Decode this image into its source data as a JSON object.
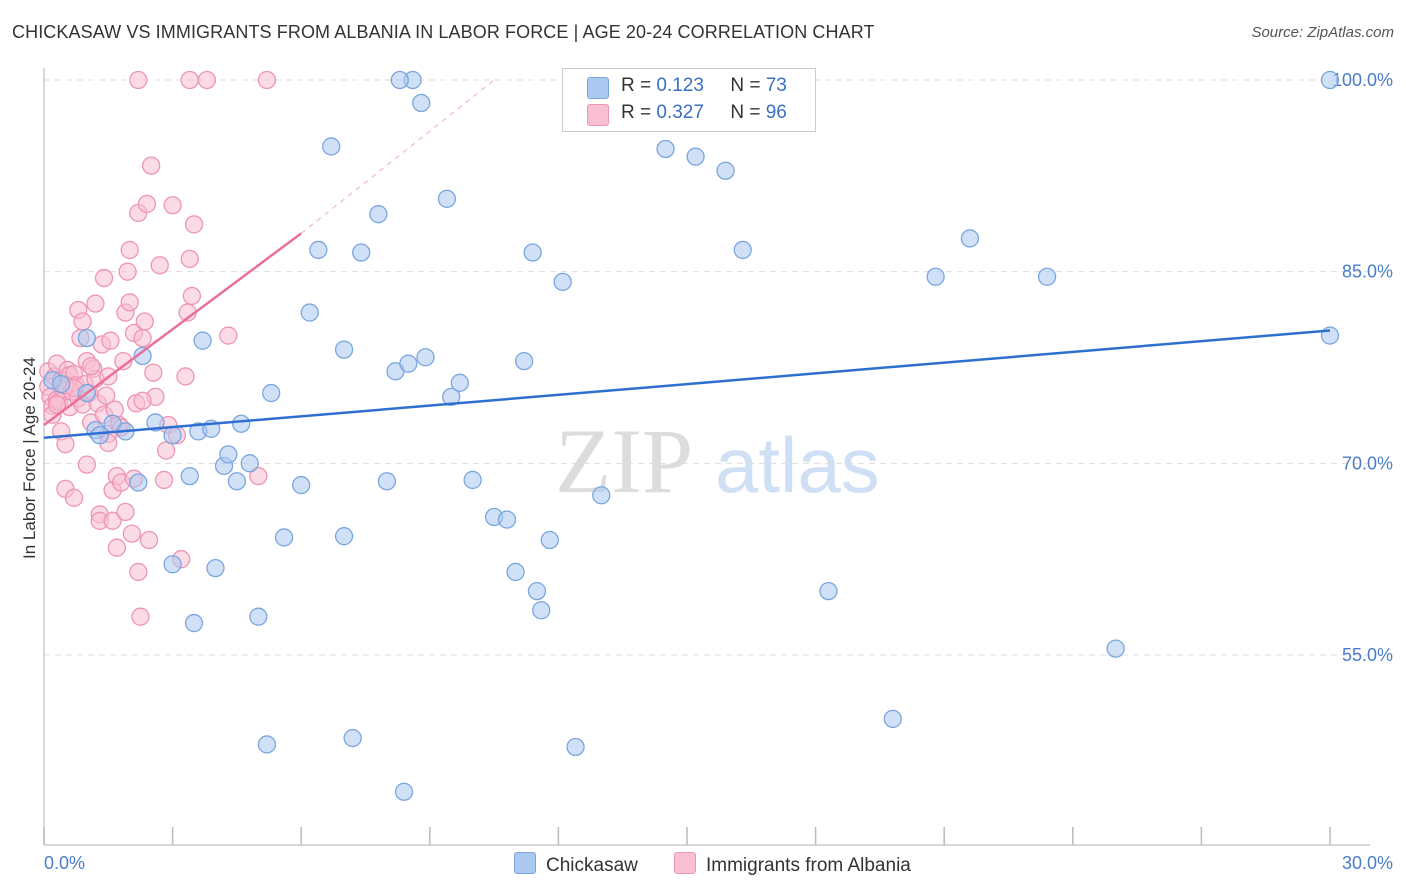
{
  "title": "CHICKASAW VS IMMIGRANTS FROM ALBANIA IN LABOR FORCE | AGE 20-24 CORRELATION CHART",
  "source": "Source: ZipAtlas.com",
  "watermark": {
    "zip": "ZIP",
    "atlas": "atlas"
  },
  "colors": {
    "chickasaw_fill": "#aac8f0",
    "chickasaw_stroke": "#7aa6e0",
    "chickasaw_line": "#2f6fd0",
    "albania_fill": "#f8c0d2",
    "albania_stroke": "#ee94b4",
    "albania_line": "#e8709a",
    "tick_text": "#4a7cc9",
    "grid": "#dddddd"
  },
  "legend": {
    "rows": [
      {
        "r_label": "R =",
        "r_value": "0.123",
        "n_label": "N =",
        "n_value": "73"
      },
      {
        "r_label": "R =",
        "r_value": "0.327",
        "n_label": "N =",
        "n_value": "96"
      }
    ]
  },
  "chart_data": {
    "type": "scatter",
    "title": "CHICKASAW VS IMMIGRANTS FROM ALBANIA IN LABOR FORCE | AGE 20-24 CORRELATION CHART",
    "xlabel": "",
    "ylabel": "In Labor Force | Age 20-24",
    "xlim": [
      0,
      30
    ],
    "ylim": [
      40,
      102.5
    ],
    "x_tick_labels": [
      "0.0%",
      "30.0%"
    ],
    "y_ticks": [
      55,
      70,
      85,
      100
    ],
    "y_tick_labels": [
      "55.0%",
      "70.0%",
      "85.0%",
      "100.0%"
    ],
    "legend_position": "bottom-center",
    "series": [
      {
        "name": "Chickasaw",
        "r": 0.123,
        "n": 73,
        "trend": {
          "x": [
            0,
            30
          ],
          "y": [
            72.0,
            80.4
          ]
        },
        "points": [
          [
            0.2,
            76.5
          ],
          [
            0.4,
            76.2
          ],
          [
            1.0,
            75.5
          ],
          [
            1.0,
            79.8
          ],
          [
            1.2,
            72.6
          ],
          [
            1.3,
            72.2
          ],
          [
            1.6,
            73.1
          ],
          [
            1.9,
            72.5
          ],
          [
            2.2,
            68.5
          ],
          [
            2.3,
            78.4
          ],
          [
            2.6,
            73.2
          ],
          [
            3.0,
            62.1
          ],
          [
            3.0,
            72.2
          ],
          [
            3.4,
            69.0
          ],
          [
            3.5,
            57.5
          ],
          [
            3.6,
            72.5
          ],
          [
            3.7,
            79.6
          ],
          [
            3.9,
            72.7
          ],
          [
            4.0,
            61.8
          ],
          [
            4.2,
            69.8
          ],
          [
            4.3,
            70.7
          ],
          [
            4.5,
            68.6
          ],
          [
            4.6,
            73.1
          ],
          [
            4.8,
            70.0
          ],
          [
            5.0,
            58.0
          ],
          [
            5.2,
            48.0
          ],
          [
            5.3,
            75.5
          ],
          [
            5.6,
            64.2
          ],
          [
            6.0,
            68.3
          ],
          [
            6.2,
            81.8
          ],
          [
            6.4,
            86.7
          ],
          [
            6.7,
            94.8
          ],
          [
            7.0,
            78.9
          ],
          [
            7.0,
            64.3
          ],
          [
            7.2,
            48.5
          ],
          [
            7.4,
            86.5
          ],
          [
            7.8,
            89.5
          ],
          [
            8.0,
            68.6
          ],
          [
            8.2,
            77.2
          ],
          [
            8.4,
            44.3
          ],
          [
            8.5,
            77.8
          ],
          [
            8.6,
            100.0
          ],
          [
            8.8,
            98.2
          ],
          [
            8.9,
            78.3
          ],
          [
            9.4,
            90.7
          ],
          [
            9.5,
            75.2
          ],
          [
            9.7,
            76.3
          ],
          [
            10.0,
            68.7
          ],
          [
            10.5,
            65.8
          ],
          [
            10.8,
            65.6
          ],
          [
            11.0,
            61.5
          ],
          [
            11.2,
            78.0
          ],
          [
            11.4,
            86.5
          ],
          [
            11.5,
            60.0
          ],
          [
            11.6,
            58.5
          ],
          [
            11.8,
            64.0
          ],
          [
            12.1,
            84.2
          ],
          [
            12.4,
            47.8
          ],
          [
            13.0,
            67.5
          ],
          [
            14.5,
            94.6
          ],
          [
            15.2,
            94.0
          ],
          [
            15.9,
            92.9
          ],
          [
            16.3,
            86.7
          ],
          [
            18.3,
            60.0
          ],
          [
            19.8,
            50.0
          ],
          [
            20.8,
            84.6
          ],
          [
            21.6,
            87.6
          ],
          [
            23.4,
            84.6
          ],
          [
            25.0,
            55.5
          ],
          [
            30.0,
            80.0
          ],
          [
            30.0,
            100.0
          ],
          [
            8.3,
            100.0
          ],
          [
            12.7,
            100.0
          ]
        ]
      },
      {
        "name": "Immigrants from Albania",
        "r": 0.327,
        "n": 96,
        "trend": {
          "x": [
            0,
            6.0
          ],
          "y": [
            73.0,
            88.0
          ]
        },
        "trend_dashed": {
          "x": [
            6.0,
            10.5
          ],
          "y": [
            88.0,
            100.0
          ]
        },
        "points": [
          [
            0.1,
            77.2
          ],
          [
            0.1,
            76.0
          ],
          [
            0.15,
            75.2
          ],
          [
            0.2,
            74.5
          ],
          [
            0.2,
            73.8
          ],
          [
            0.25,
            76.8
          ],
          [
            0.3,
            75.0
          ],
          [
            0.3,
            77.8
          ],
          [
            0.35,
            74.8
          ],
          [
            0.4,
            76.5
          ],
          [
            0.4,
            72.5
          ],
          [
            0.45,
            75.8
          ],
          [
            0.5,
            71.5
          ],
          [
            0.5,
            68.0
          ],
          [
            0.55,
            77.3
          ],
          [
            0.6,
            76.9
          ],
          [
            0.6,
            74.4
          ],
          [
            0.65,
            75.6
          ],
          [
            0.7,
            77.0
          ],
          [
            0.7,
            67.3
          ],
          [
            0.75,
            76.1
          ],
          [
            0.8,
            82.0
          ],
          [
            0.8,
            75.1
          ],
          [
            0.85,
            79.8
          ],
          [
            0.9,
            81.1
          ],
          [
            0.9,
            74.6
          ],
          [
            0.95,
            76.2
          ],
          [
            1.0,
            78.0
          ],
          [
            1.0,
            69.9
          ],
          [
            1.05,
            75.5
          ],
          [
            1.1,
            73.2
          ],
          [
            1.15,
            77.4
          ],
          [
            1.2,
            82.5
          ],
          [
            1.2,
            76.6
          ],
          [
            1.25,
            74.7
          ],
          [
            1.3,
            66.0
          ],
          [
            1.3,
            65.5
          ],
          [
            1.35,
            79.3
          ],
          [
            1.4,
            84.5
          ],
          [
            1.4,
            73.8
          ],
          [
            1.45,
            75.3
          ],
          [
            1.5,
            76.8
          ],
          [
            1.5,
            72.3
          ],
          [
            1.55,
            79.6
          ],
          [
            1.6,
            65.5
          ],
          [
            1.6,
            67.9
          ],
          [
            1.65,
            74.2
          ],
          [
            1.7,
            69.0
          ],
          [
            1.7,
            63.4
          ],
          [
            1.75,
            73.0
          ],
          [
            1.8,
            72.8
          ],
          [
            1.8,
            68.5
          ],
          [
            1.85,
            78.0
          ],
          [
            1.9,
            66.2
          ],
          [
            1.9,
            81.8
          ],
          [
            1.95,
            85.0
          ],
          [
            2.0,
            86.7
          ],
          [
            2.0,
            82.6
          ],
          [
            2.05,
            64.5
          ],
          [
            2.1,
            80.2
          ],
          [
            2.1,
            68.8
          ],
          [
            2.15,
            74.7
          ],
          [
            2.2,
            61.5
          ],
          [
            2.2,
            89.6
          ],
          [
            2.25,
            58.0
          ],
          [
            2.3,
            79.8
          ],
          [
            2.35,
            81.1
          ],
          [
            2.4,
            90.3
          ],
          [
            2.45,
            64.0
          ],
          [
            2.5,
            93.3
          ],
          [
            2.55,
            77.1
          ],
          [
            2.6,
            75.2
          ],
          [
            2.7,
            85.5
          ],
          [
            2.8,
            68.7
          ],
          [
            2.85,
            71.0
          ],
          [
            2.9,
            73.0
          ],
          [
            3.0,
            90.2
          ],
          [
            3.1,
            72.2
          ],
          [
            3.2,
            62.5
          ],
          [
            3.3,
            76.8
          ],
          [
            3.35,
            81.8
          ],
          [
            3.4,
            86.0
          ],
          [
            3.45,
            83.1
          ],
          [
            3.5,
            88.7
          ],
          [
            4.3,
            80.0
          ],
          [
            5.0,
            69.0
          ],
          [
            2.2,
            100.0
          ],
          [
            3.4,
            100.0
          ],
          [
            3.8,
            100.0
          ],
          [
            5.2,
            100.0
          ],
          [
            0.3,
            74.6
          ],
          [
            0.5,
            76.1
          ],
          [
            0.7,
            75.9
          ],
          [
            1.1,
            77.6
          ],
          [
            1.5,
            71.6
          ],
          [
            2.3,
            74.9
          ]
        ]
      }
    ]
  }
}
